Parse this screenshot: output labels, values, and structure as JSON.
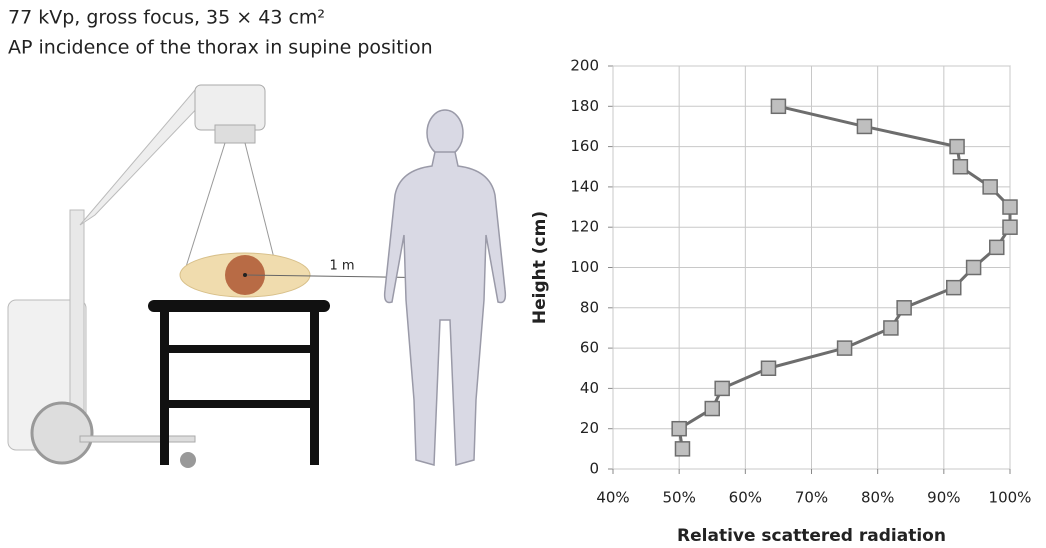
{
  "illustration": {
    "caption": [
      "77 kVp, gross focus, 35 × 43 cm²",
      "AP incidence of the thorax in supine position"
    ],
    "distance_label": "1 m"
  },
  "chart_data": {
    "type": "line",
    "x_label": "Relative scattered radiation",
    "y_label": "Height (cm)",
    "x": [
      65,
      78,
      92,
      92.5,
      97,
      100,
      100,
      98,
      94.5,
      91.5,
      84,
      82,
      75,
      63.5,
      56.5,
      55,
      50,
      50.5
    ],
    "values": [
      180,
      170,
      160,
      150,
      140,
      130,
      120,
      110,
      100,
      90,
      80,
      70,
      60,
      50,
      40,
      30,
      20,
      10
    ],
    "color": "#6d6d6d",
    "marker_color": "#bfbfbf",
    "xlim": [
      40,
      100
    ],
    "xticks": [
      {
        "value": 40,
        "label": "40%"
      },
      {
        "value": 50,
        "label": "50%"
      },
      {
        "value": 60,
        "label": "60%"
      },
      {
        "value": 70,
        "label": "70%"
      },
      {
        "value": 80,
        "label": "80%"
      },
      {
        "value": 90,
        "label": "90%"
      },
      {
        "value": 100,
        "label": "100%"
      }
    ],
    "ylim": [
      0,
      200
    ],
    "yticks": [
      0,
      20,
      40,
      60,
      80,
      100,
      120,
      140,
      160,
      180,
      200
    ],
    "grid": true
  }
}
